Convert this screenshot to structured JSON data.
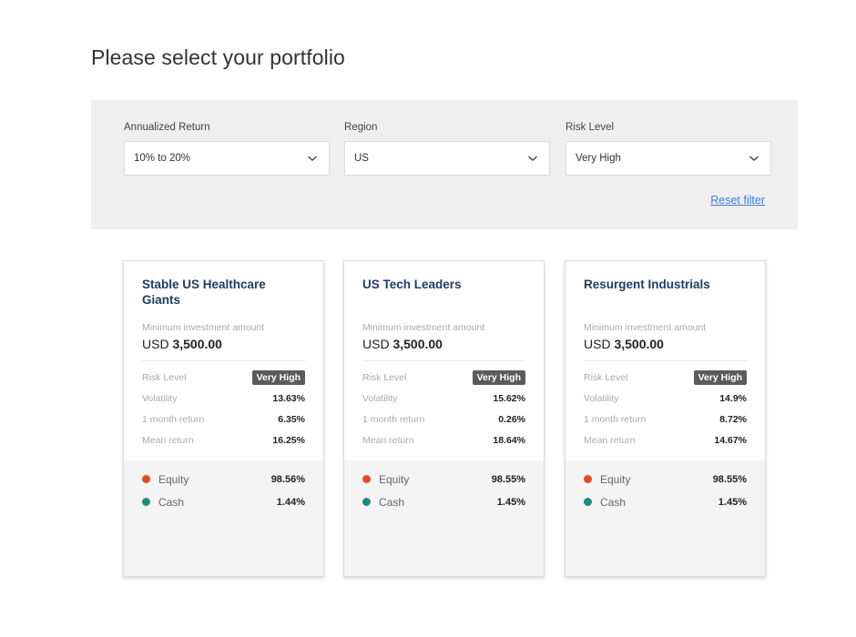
{
  "page": {
    "title": "Please select your portfolio"
  },
  "filters": {
    "annualized_return": {
      "label": "Annualized Return",
      "value": "10% to 20%"
    },
    "region": {
      "label": "Region",
      "value": "US"
    },
    "risk_level": {
      "label": "Risk Level",
      "value": "Very High"
    },
    "reset_label": "Reset filter"
  },
  "colors": {
    "equity": "#e84a1f",
    "cash": "#1e8a80",
    "badge": "#5b5b5b",
    "title": "#1e3d66",
    "link": "#3b7fd8"
  },
  "labels": {
    "min_investment": "Minimum investment amount",
    "risk_level": "Risk Level",
    "volatility": "Volatility",
    "one_month_return": "1 month return",
    "mean_return": "Mean return",
    "equity": "Equity",
    "cash": "Cash"
  },
  "portfolios": [
    {
      "name": "Stable US Healthcare Giants",
      "currency": "USD",
      "min_amount": "3,500.00",
      "risk_level": "Very High",
      "volatility": "13.63%",
      "one_month_return": "6.35%",
      "mean_return": "16.25%",
      "equity": "98.56%",
      "cash": "1.44%"
    },
    {
      "name": "US Tech Leaders",
      "currency": "USD",
      "min_amount": "3,500.00",
      "risk_level": "Very High",
      "volatility": "15.62%",
      "one_month_return": "0.26%",
      "mean_return": "18.64%",
      "equity": "98.55%",
      "cash": "1.45%"
    },
    {
      "name": "Resurgent Industrials",
      "currency": "USD",
      "min_amount": "3,500.00",
      "risk_level": "Very High",
      "volatility": "14.9%",
      "one_month_return": "8.72%",
      "mean_return": "14.67%",
      "equity": "98.55%",
      "cash": "1.45%"
    }
  ]
}
